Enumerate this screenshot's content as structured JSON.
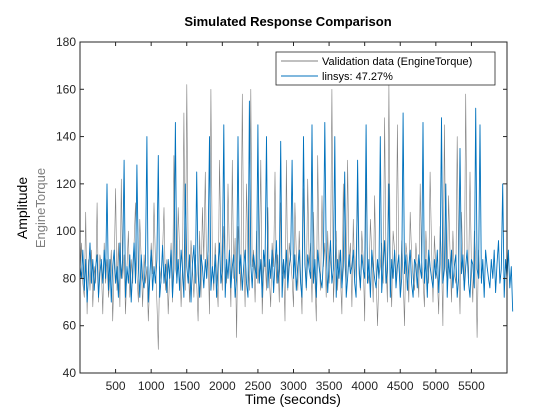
{
  "chart_data": {
    "type": "line",
    "title": "Simulated Response Comparison",
    "xlabel": "Time (seconds)",
    "ylabel": "Amplitude",
    "channel_label": "EngineTorque",
    "xlim": [
      0,
      6000
    ],
    "ylim": [
      40,
      180
    ],
    "x_ticks": [
      500,
      1000,
      1500,
      2000,
      2500,
      3000,
      3500,
      4000,
      4500,
      5000,
      5500
    ],
    "y_ticks": [
      40,
      60,
      80,
      100,
      120,
      140,
      160,
      180
    ],
    "grid": false,
    "legend_position": "top-right",
    "sample_interval": 20,
    "series": [
      {
        "name": "Validation data (EngineTorque)",
        "color": "#808080",
        "values": [
          82,
          95,
          78,
          72,
          108,
          65,
          88,
          75,
          92,
          68,
          85,
          78,
          112,
          70,
          90,
          85,
          65,
          95,
          78,
          88,
          72,
          80,
          92,
          62,
          85,
          118,
          75,
          95,
          68,
          122,
          80,
          90,
          65,
          85,
          100,
          72,
          88,
          78,
          95,
          112,
          82,
          70,
          105,
          88,
          68,
          90,
          78,
          85,
          62,
          78,
          95,
          82,
          112,
          88,
          70,
          50,
          85,
          78,
          92,
          110,
          75,
          88,
          65,
          82,
          95,
          70,
          132,
          85,
          80,
          110,
          92,
          68,
          85,
          150,
          75,
          162,
          88,
          70,
          96,
          85,
          72,
          90,
          78,
          62,
          100,
          72,
          110,
          88,
          125,
          80,
          90,
          65,
          160,
          85,
          75,
          95,
          82,
          68,
          130,
          95,
          75,
          102,
          85,
          78,
          120,
          90,
          68,
          130,
          80,
          97,
          55,
          102,
          88,
          75,
          158,
          92,
          68,
          120,
          88,
          75,
          160,
          85,
          92,
          70,
          100,
          78,
          88,
          130,
          65,
          82,
          90,
          75,
          110,
          80,
          68,
          95,
          85,
          125,
          78,
          90,
          70,
          112,
          82,
          88,
          62,
          130,
          75,
          95,
          88,
          80,
          68,
          112,
          90,
          75,
          100,
          82,
          65,
          118,
          88,
          75,
          122,
          85,
          95,
          70,
          108,
          80,
          62,
          132,
          88,
          75,
          115,
          85,
          95,
          72,
          100,
          78,
          88,
          160,
          70,
          85,
          100,
          75,
          92,
          80,
          65,
          120,
          88,
          75,
          130,
          85,
          95,
          68,
          105,
          80,
          90,
          118,
          82,
          75,
          100,
          88,
          62,
          125,
          85,
          78,
          105,
          90,
          70,
          115,
          82,
          60,
          80,
          85,
          95,
          78,
          148,
          88,
          70,
          162,
          85,
          68,
          100,
          92,
          78,
          145,
          85,
          75,
          96,
          82,
          60,
          95,
          88,
          70,
          108,
          90,
          80,
          75,
          95,
          85,
          72,
          120,
          88,
          80,
          68,
          100,
          85,
          78,
          125,
          92,
          70,
          98,
          85,
          80,
          65,
          102,
          88,
          60,
          145,
          85,
          78,
          115,
          90,
          70,
          100,
          82,
          78,
          140,
          88,
          65,
          108,
          85,
          75,
          158,
          90,
          80,
          125,
          85,
          70,
          100,
          88,
          55,
          92,
          80
        ]
      },
      {
        "name": "linsys: 47.27%",
        "color": "#0072BD",
        "values": [
          85,
          80,
          92,
          75,
          88,
          70,
          82,
          95,
          78,
          88,
          75,
          85,
          90,
          72,
          82,
          88,
          78,
          92,
          80,
          120,
          75,
          88,
          70,
          85,
          92,
          78,
          85,
          72,
          95,
          80,
          88,
          130,
          72,
          85,
          78,
          90,
          70,
          84,
          95,
          78,
          128,
          85,
          72,
          90,
          80,
          76,
          88,
          140,
          70,
          80,
          92,
          75,
          85,
          78,
          88,
          132,
          72,
          80,
          94,
          78,
          86,
          74,
          88,
          80,
          92,
          72,
          84,
          146,
          78,
          88,
          75,
          92,
          84,
          72,
          120,
          85,
          78,
          90,
          70,
          86,
          94,
          78,
          125,
          82,
          72,
          90,
          85,
          76,
          88,
          80,
          92,
          140,
          75,
          85,
          78,
          90,
          72,
          86,
          95,
          78,
          84,
          145,
          72,
          88,
          80,
          92,
          76,
          85,
          90,
          72,
          80,
          140,
          82,
          90,
          75,
          85,
          92,
          78,
          72,
          155,
          86,
          76,
          90,
          84,
          80,
          145,
          78,
          88,
          72,
          92,
          85,
          140,
          76,
          88,
          80,
          92,
          74,
          86,
          96,
          78,
          84,
          138,
          72,
          88,
          80,
          92,
          76,
          85,
          90,
          130,
          80,
          90,
          75,
          85,
          92,
          78,
          72,
          140,
          86,
          76,
          90,
          84,
          80,
          145,
          78,
          88,
          72,
          92,
          85,
          80,
          76,
          88,
          146,
          92,
          74,
          86,
          96,
          78,
          84,
          140,
          72,
          88,
          80,
          92,
          76,
          85,
          125,
          72,
          80,
          90,
          82,
          85,
          92,
          78,
          72,
          130,
          86,
          76,
          90,
          84,
          80,
          145,
          78,
          88,
          72,
          92,
          85,
          80,
          76,
          88,
          80,
          140,
          74,
          86,
          96,
          78,
          84,
          120,
          72,
          88,
          80,
          92,
          76,
          85,
          90,
          72,
          80,
          150,
          82,
          90,
          75,
          85,
          92,
          78,
          72,
          88,
          86,
          76,
          90,
          84,
          80,
          146,
          78,
          88,
          72,
          92,
          85,
          80,
          76,
          88,
          80,
          92,
          74,
          86,
          148,
          78,
          84,
          120,
          72,
          88,
          80,
          92,
          76,
          85,
          90,
          72,
          80,
          135,
          82,
          90,
          75,
          85,
          92,
          78,
          72,
          88,
          86,
          76,
          152,
          84,
          80,
          145,
          78,
          88,
          72,
          92,
          85,
          80,
          76,
          88,
          80,
          92,
          74,
          86,
          96,
          78,
          84,
          120,
          72,
          88,
          80,
          92,
          76,
          85,
          66
        ]
      }
    ]
  }
}
